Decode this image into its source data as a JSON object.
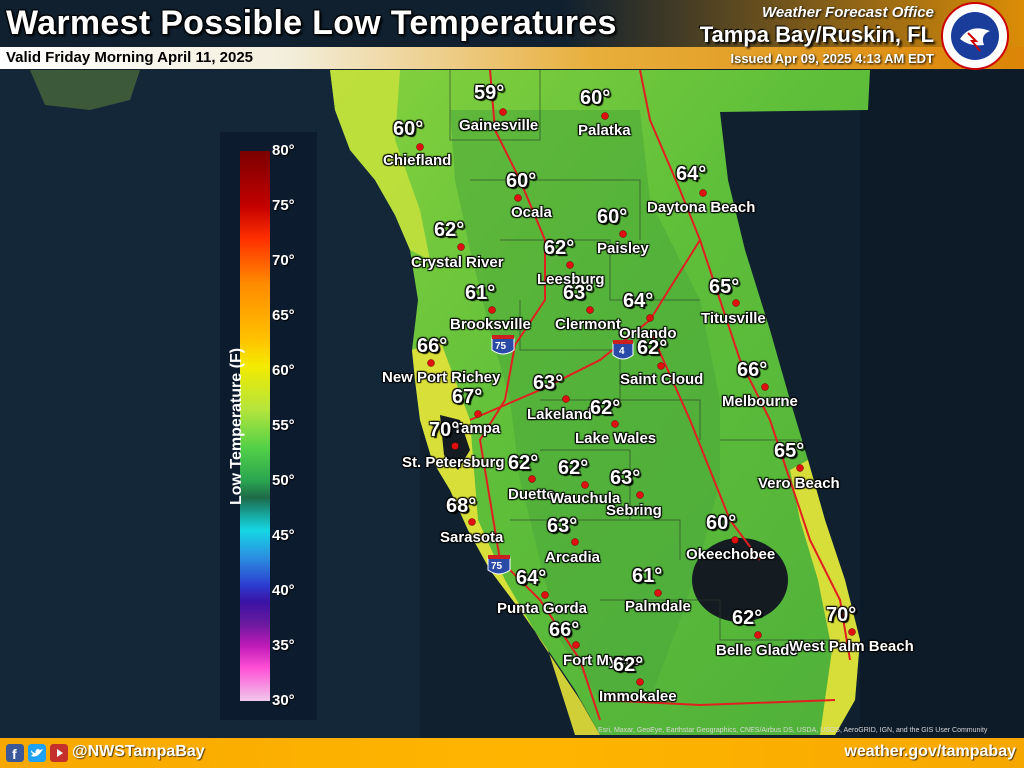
{
  "header": {
    "title": "Warmest Possible Low Temperatures",
    "valid": "Valid Friday Morning April 11, 2025",
    "office_line1": "Weather Forecast Office",
    "office_line2": "Tampa Bay/Ruskin, FL",
    "issued": "Issued Apr 09, 2025 4:13 AM EDT"
  },
  "legend": {
    "title": "Low Temperature (F)",
    "ticks": [
      "80°",
      "75°",
      "70°",
      "65°",
      "60°",
      "55°",
      "50°",
      "45°",
      "40°",
      "35°",
      "30°"
    ]
  },
  "cities": [
    {
      "name": "Gainesville",
      "temp": "59°"
    },
    {
      "name": "Palatka",
      "temp": "60°"
    },
    {
      "name": "Chiefland",
      "temp": "60°"
    },
    {
      "name": "Ocala",
      "temp": "60°"
    },
    {
      "name": "Daytona Beach",
      "temp": "64°"
    },
    {
      "name": "Paisley",
      "temp": "60°"
    },
    {
      "name": "Crystal River",
      "temp": "62°"
    },
    {
      "name": "Leesburg",
      "temp": "62°"
    },
    {
      "name": "Brooksville",
      "temp": "61°"
    },
    {
      "name": "Clermont",
      "temp": "63°"
    },
    {
      "name": "Orlando",
      "temp": "64°"
    },
    {
      "name": "Titusville",
      "temp": "65°"
    },
    {
      "name": "New Port Richey",
      "temp": "66°"
    },
    {
      "name": "Saint Cloud",
      "temp": "62°"
    },
    {
      "name": "Melbourne",
      "temp": "66°"
    },
    {
      "name": "Lakeland",
      "temp": "63°"
    },
    {
      "name": "Tampa",
      "temp": "67°"
    },
    {
      "name": "Lake Wales",
      "temp": "62°"
    },
    {
      "name": "St. Petersburg",
      "temp": "70°"
    },
    {
      "name": "Duette",
      "temp": "62°"
    },
    {
      "name": "Wauchula",
      "temp": "62°"
    },
    {
      "name": "Sebring",
      "temp": "63°"
    },
    {
      "name": "Vero Beach",
      "temp": "65°"
    },
    {
      "name": "Sarasota",
      "temp": "68°"
    },
    {
      "name": "Arcadia",
      "temp": "63°"
    },
    {
      "name": "Okeechobee",
      "temp": "60°"
    },
    {
      "name": "Punta Gorda",
      "temp": "64°"
    },
    {
      "name": "Palmdale",
      "temp": "61°"
    },
    {
      "name": "Fort Myers",
      "temp": "66°"
    },
    {
      "name": "Belle Glade",
      "temp": "62°"
    },
    {
      "name": "West Palm Beach",
      "temp": "70°"
    },
    {
      "name": "Immokalee",
      "temp": "62°"
    }
  ],
  "shields": {
    "i75_a": "75",
    "i75_b": "75",
    "i4": "4"
  },
  "attribution": "Esri, Maxar, GeoEye, Earthstar Geographics, CNES/Airbus DS, USDA, USGS, AeroGRID, IGN, and the GIS User Community",
  "footer": {
    "handle": "@NWSTampaBay",
    "website": "weather.gov/tampabay"
  },
  "colors": {
    "water": "#0f1c2c",
    "land_green": "#6cc83c",
    "land_yellow": "#e8e83a",
    "roads": "#e02020",
    "footer_orange": "#ffb000"
  }
}
